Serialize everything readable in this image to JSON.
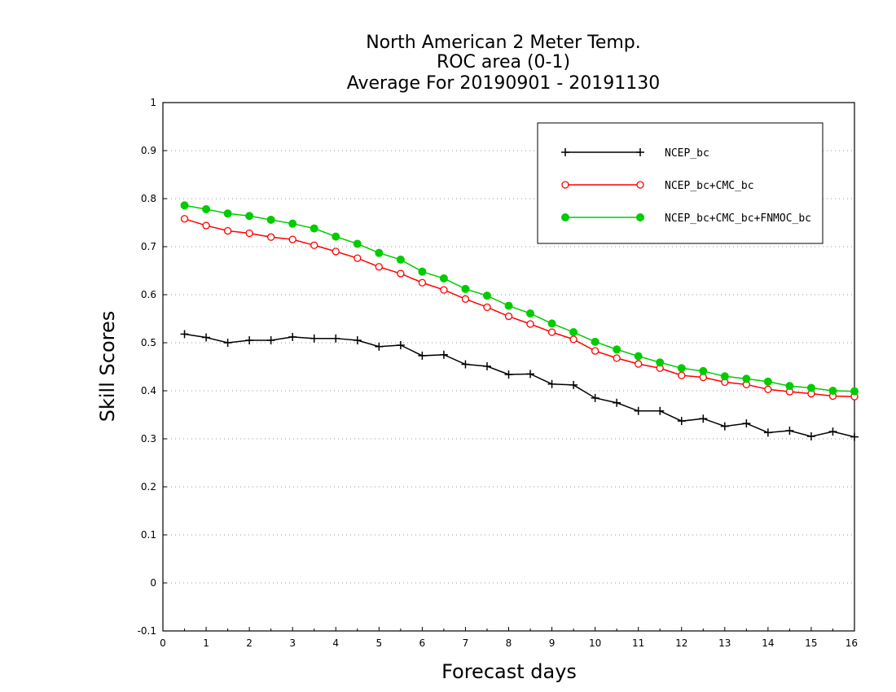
{
  "chart_data": {
    "type": "line",
    "title_lines": [
      "North American 2 Meter Temp.",
      "ROC area (0-1)",
      "Average For 20190901 - 20191130"
    ],
    "xlabel": "Forecast days",
    "ylabel": "Skill Scores",
    "xlim": [
      0,
      16
    ],
    "ylim": [
      -0.1,
      1
    ],
    "x_ticks": [
      "0",
      "1",
      "2",
      "3",
      "4",
      "5",
      "6",
      "7",
      "8",
      "9",
      "10",
      "11",
      "12",
      "13",
      "14",
      "15",
      "16"
    ],
    "y_ticks": [
      "-0.1",
      "0",
      "0.1",
      "0.2",
      "0.3",
      "0.4",
      "0.5",
      "0.6",
      "0.7",
      "0.8",
      "0.9",
      "1"
    ],
    "grid": true,
    "legend_position": "top-right",
    "x": [
      0.5,
      1,
      1.5,
      2,
      2.5,
      3,
      3.5,
      4,
      4.5,
      5,
      5.5,
      6,
      6.5,
      7,
      7.5,
      8,
      8.5,
      9,
      9.5,
      10,
      10.5,
      11,
      11.5,
      12,
      12.5,
      13,
      13.5,
      14,
      14.5,
      15,
      15.5,
      16
    ],
    "series": [
      {
        "name": "NCEP_bc",
        "color": "#000000",
        "marker": "plus",
        "values": [
          0.518,
          0.511,
          0.5,
          0.505,
          0.505,
          0.512,
          0.509,
          0.509,
          0.505,
          0.492,
          0.495,
          0.473,
          0.475,
          0.455,
          0.451,
          0.434,
          0.435,
          0.414,
          0.412,
          0.385,
          0.375,
          0.358,
          0.358,
          0.337,
          0.342,
          0.326,
          0.332,
          0.313,
          0.317,
          0.305,
          0.315,
          0.304
        ]
      },
      {
        "name": "NCEP_bc+CMC_bc",
        "color": "#ff0000",
        "marker": "open-circle",
        "values": [
          0.758,
          0.744,
          0.733,
          0.728,
          0.72,
          0.715,
          0.703,
          0.69,
          0.676,
          0.658,
          0.644,
          0.625,
          0.61,
          0.591,
          0.574,
          0.555,
          0.539,
          0.522,
          0.507,
          0.483,
          0.468,
          0.456,
          0.447,
          0.432,
          0.428,
          0.418,
          0.413,
          0.403,
          0.398,
          0.394,
          0.389,
          0.388
        ]
      },
      {
        "name": "NCEP_bc+CMC_bc+FNMOC_bc",
        "color": "#00cc00",
        "marker": "filled-circle",
        "values": [
          0.786,
          0.778,
          0.769,
          0.764,
          0.756,
          0.748,
          0.738,
          0.721,
          0.706,
          0.687,
          0.673,
          0.648,
          0.634,
          0.612,
          0.598,
          0.577,
          0.561,
          0.54,
          0.522,
          0.502,
          0.486,
          0.472,
          0.459,
          0.447,
          0.441,
          0.43,
          0.425,
          0.419,
          0.41,
          0.406,
          0.4,
          0.399
        ]
      }
    ]
  }
}
